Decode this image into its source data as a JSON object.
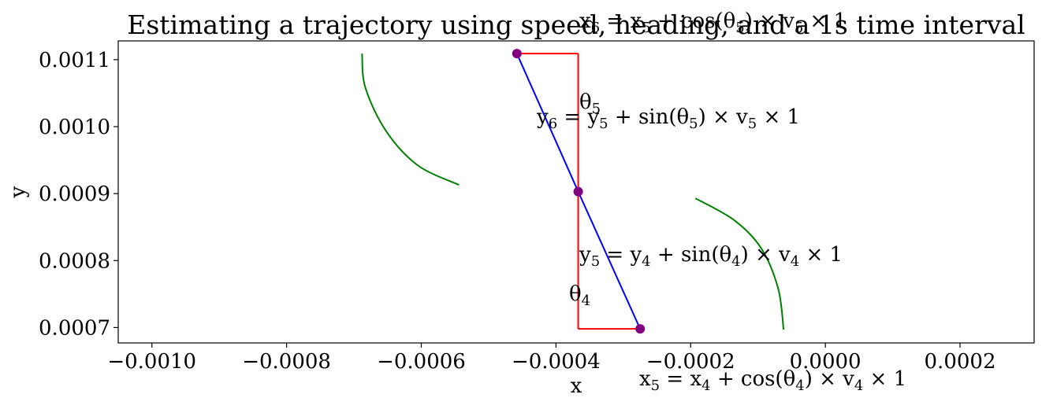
{
  "chart_data": {
    "type": "line",
    "title": "Estimating a trajectory using speed, heading, and a 1s time interval",
    "xlabel": "x",
    "ylabel": "y",
    "xlim": [
      -0.00105,
      0.00031
    ],
    "ylim": [
      0.000677,
      0.001128
    ],
    "grid": false,
    "legend": "none",
    "x_ticks": [
      {
        "value": -0.001,
        "label": "−0.0010"
      },
      {
        "value": -0.0008,
        "label": "−0.0008"
      },
      {
        "value": -0.0006,
        "label": "−0.0006"
      },
      {
        "value": -0.0004,
        "label": "−0.0004"
      },
      {
        "value": -0.0002,
        "label": "−0.0002"
      },
      {
        "value": 0.0,
        "label": "0.0000"
      },
      {
        "value": 0.0002,
        "label": "0.0002"
      }
    ],
    "y_ticks": [
      {
        "value": 0.0007,
        "label": "0.0007"
      },
      {
        "value": 0.0008,
        "label": "0.0008"
      },
      {
        "value": 0.0009,
        "label": "0.0009"
      },
      {
        "value": 0.001,
        "label": "0.0010"
      },
      {
        "value": 0.0011,
        "label": "0.0011"
      }
    ],
    "trajectory": {
      "color": "#0000ff",
      "marker_color": "#800080",
      "points": [
        {
          "x": -0.000275,
          "y": 0.000698
        },
        {
          "x": -0.000367,
          "y": 0.000903
        },
        {
          "x": -0.000458,
          "y": 0.001109
        }
      ]
    },
    "components": {
      "color": "#ff0000",
      "segments": [
        {
          "x": [
            -0.000275,
            -0.000367
          ],
          "y": [
            0.000698,
            0.000698
          ]
        },
        {
          "x": [
            -0.000367,
            -0.000367
          ],
          "y": [
            0.000698,
            0.000903
          ]
        },
        {
          "x": [
            -0.000367,
            -0.000367
          ],
          "y": [
            0.000903,
            0.001109
          ]
        },
        {
          "x": [
            -0.000367,
            -0.000458
          ],
          "y": [
            0.001109,
            0.001109
          ]
        }
      ]
    },
    "arcs": {
      "color": "#008000",
      "curves": [
        {
          "x": [
            -6.2e-05,
            -7e-05,
            -9.5e-05,
            -0.000135,
            -0.000193
          ],
          "y": [
            0.000697,
            0.000758,
            0.000818,
            0.00086,
            0.000893
          ]
        },
        {
          "x": [
            -0.000544,
            -0.000605,
            -0.000652,
            -0.000683,
            -0.000688
          ],
          "y": [
            0.000913,
            0.000942,
            0.000993,
            0.001058,
            0.001109
          ]
        }
      ]
    },
    "annotations": [
      {
        "base": "x",
        "sub": "6",
        "rest": " = x",
        "sub2": "5",
        "rest2": " + cos(θ",
        "sub3": "5",
        "rest3": ") × v",
        "sub4": "5",
        "rest4": " × 1"
      },
      {
        "base": "y",
        "sub": "6",
        "rest": " = y",
        "sub2": "5",
        "rest2": " + sin(θ",
        "sub3": "5",
        "rest3": ") × v",
        "sub4": "5",
        "rest4": " × 1"
      },
      {
        "base": "y",
        "sub": "5",
        "rest": " = y",
        "sub2": "4",
        "rest2": " + sin(θ",
        "sub3": "4",
        "rest3": ") × v",
        "sub4": "4",
        "rest4": " × 1"
      },
      {
        "base": "x",
        "sub": "5",
        "rest": " = x",
        "sub2": "4",
        "rest2": " + cos(θ",
        "sub3": "4",
        "rest3": ") × v",
        "sub4": "4",
        "rest4": " × 1"
      },
      {
        "base": "θ",
        "sub": "5"
      },
      {
        "base": "θ",
        "sub": "4"
      }
    ]
  }
}
